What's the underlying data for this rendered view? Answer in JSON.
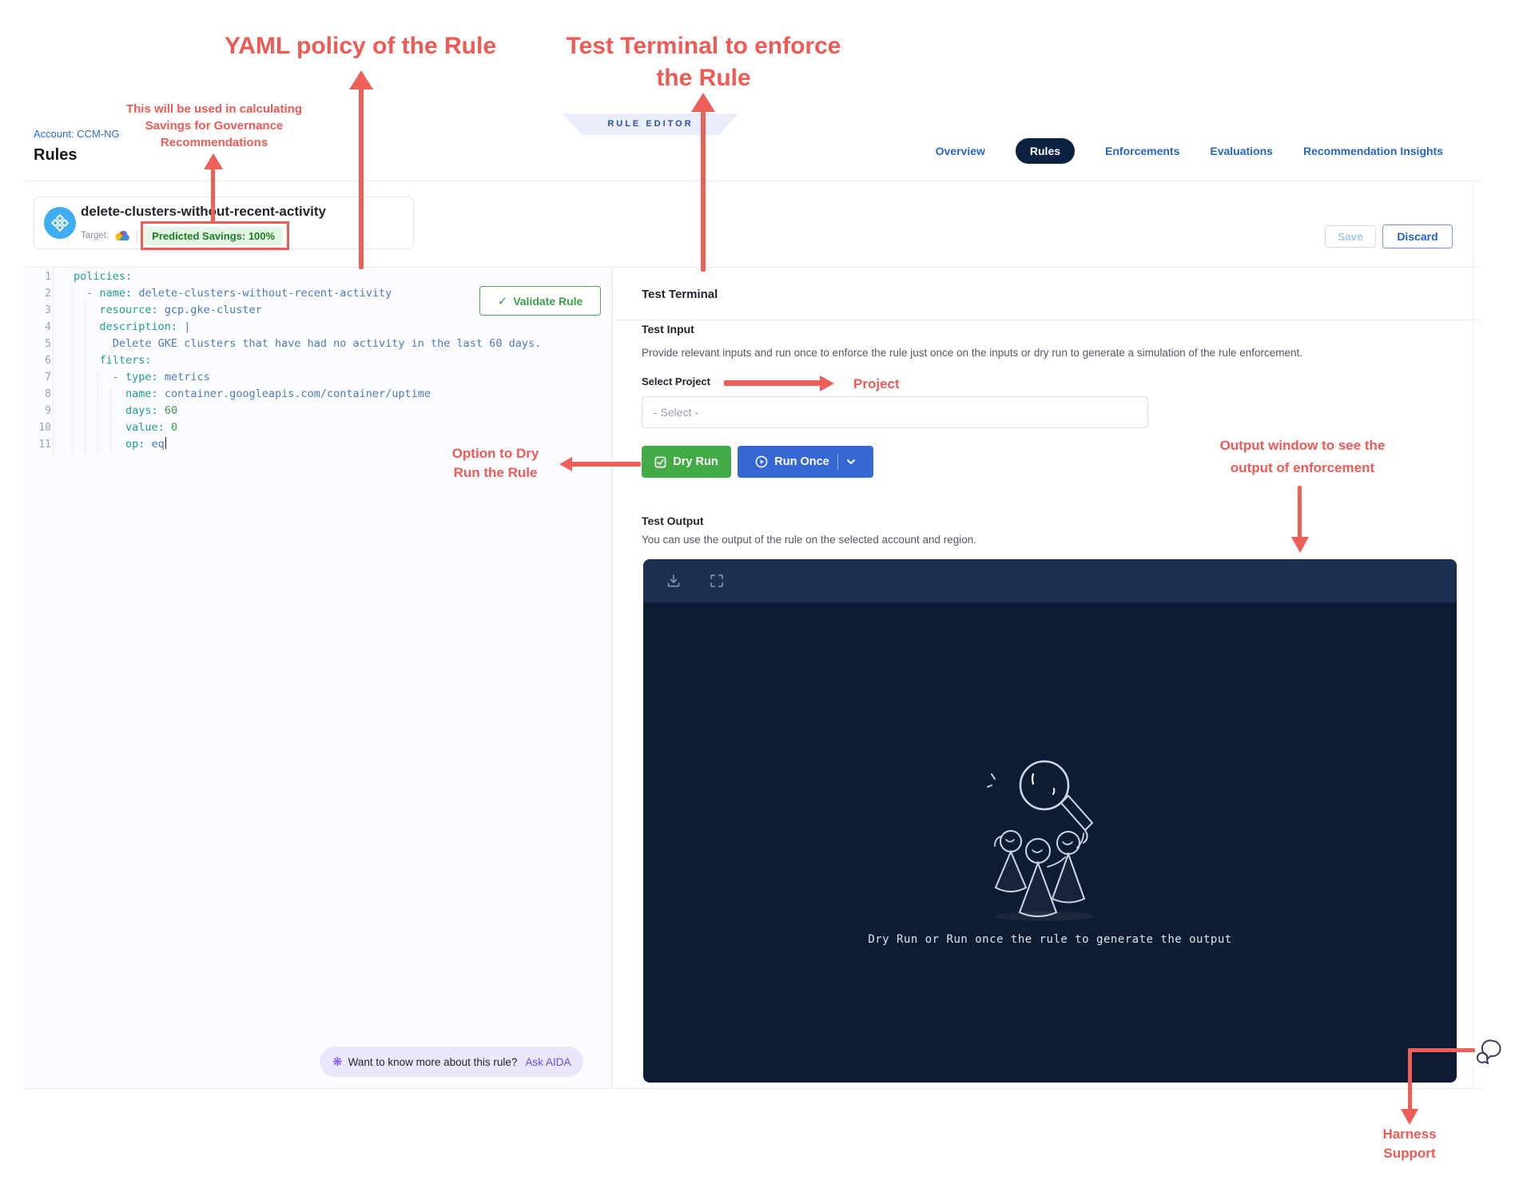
{
  "colors": {
    "annotation_red": "#ee5a54",
    "primary_blue": "#2667c7",
    "active_tab_navy": "#0b2242",
    "dry_run_green": "#42ab45",
    "run_once_blue": "#3668d4",
    "savings_green_bg": "#e2f6e3",
    "savings_green_text": "#1d7b24",
    "terminal_body": "#0e1c33",
    "terminal_header": "#1e3052"
  },
  "annotations": {
    "yaml_policy": {
      "lines": [
        "YAML policy of the Rule"
      ]
    },
    "test_terminal": {
      "lines": [
        "Test Terminal to enforce",
        "the Rule"
      ]
    },
    "savings_note": {
      "lines": [
        "This will be used in calculating",
        "Savings for Governance",
        "Recommendations"
      ]
    },
    "dry_run_note": {
      "lines": [
        "Option to Dry",
        "Run the Rule"
      ]
    },
    "project_note": {
      "lines": [
        "Project"
      ]
    },
    "output_note": {
      "lines": [
        "Output window to see the",
        "output of enforcement"
      ]
    },
    "support_note": {
      "lines": [
        "Harness",
        "Support"
      ]
    }
  },
  "header": {
    "account": "Account: CCM-NG",
    "page_title": "Rules",
    "editor_badge": "RULE EDITOR",
    "tabs": [
      {
        "label": "Overview",
        "active": false
      },
      {
        "label": "Rules",
        "active": true
      },
      {
        "label": "Enforcements",
        "active": false
      },
      {
        "label": "Evaluations",
        "active": false
      },
      {
        "label": "Recommendation Insights",
        "active": false
      }
    ],
    "save_label": "Save",
    "discard_label": "Discard"
  },
  "rule": {
    "name": "delete-clusters-without-recent-activity",
    "target_label": "Target:",
    "savings_badge": "Predicted Savings: 100%"
  },
  "editor": {
    "validate_label": "Validate Rule",
    "lines": [
      {
        "num": "1",
        "segments": [
          [
            "k",
            "policies:"
          ]
        ]
      },
      {
        "num": "2",
        "segments": [
          [
            "t",
            "  "
          ],
          [
            "td",
            "- "
          ],
          [
            "k",
            "name: "
          ],
          [
            "tv",
            "delete-clusters-without-recent-activity"
          ]
        ]
      },
      {
        "num": "3",
        "segments": [
          [
            "t",
            "    "
          ],
          [
            "k",
            "resource: "
          ],
          [
            "tv",
            "gcp.gke-cluster"
          ]
        ]
      },
      {
        "num": "4",
        "segments": [
          [
            "t",
            "    "
          ],
          [
            "k",
            "description: "
          ],
          [
            "tv",
            "|"
          ]
        ]
      },
      {
        "num": "5",
        "segments": [
          [
            "t",
            "      "
          ],
          [
            "tv",
            "Delete GKE clusters that have had no activity in the last 60 days."
          ]
        ]
      },
      {
        "num": "6",
        "segments": [
          [
            "t",
            "    "
          ],
          [
            "k",
            "filters:"
          ]
        ]
      },
      {
        "num": "7",
        "segments": [
          [
            "t",
            "      "
          ],
          [
            "td",
            "- "
          ],
          [
            "k",
            "type: "
          ],
          [
            "tv",
            "metrics"
          ]
        ]
      },
      {
        "num": "8",
        "segments": [
          [
            "t",
            "        "
          ],
          [
            "k",
            "name: "
          ],
          [
            "tv",
            "container.googleapis.com/container/uptime"
          ]
        ]
      },
      {
        "num": "9",
        "segments": [
          [
            "t",
            "        "
          ],
          [
            "k",
            "days: "
          ],
          [
            "tn",
            "60"
          ]
        ]
      },
      {
        "num": "10",
        "segments": [
          [
            "t",
            "        "
          ],
          [
            "k",
            "value: "
          ],
          [
            "tn",
            "0"
          ]
        ]
      },
      {
        "num": "11",
        "segments": [
          [
            "t",
            "        "
          ],
          [
            "k",
            "op: "
          ],
          [
            "tv",
            "eq"
          ]
        ],
        "cursor": true
      }
    ],
    "aida_prefix": "Want to know more about this rule?",
    "aida_link": "Ask AIDA"
  },
  "test_panel": {
    "title": "Test Terminal",
    "input_title": "Test Input",
    "input_desc": "Provide relevant inputs and run once to enforce the rule just once on the inputs or dry run to generate a simulation of the rule enforcement.",
    "select_label": "Select Project",
    "select_placeholder": "- Select -",
    "dry_run_label": "Dry Run",
    "run_once_label": "Run Once",
    "output_title": "Test Output",
    "output_desc": "You can use the output of the rule on the selected account and region.",
    "terminal_empty_text": "Dry Run or Run once the rule to generate the output"
  },
  "icons": {
    "sparkle": "❋",
    "check": "✓"
  }
}
